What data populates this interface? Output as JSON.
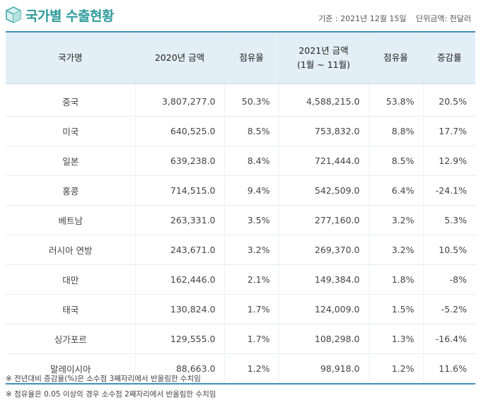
{
  "header": {
    "title": "국가별 수출현황",
    "date": "기준 : 2021년 12월 15일",
    "unit": "단위금액: 천달러"
  },
  "table": {
    "headers": [
      "국가명",
      "2020년 금액",
      "점유율",
      "2021년 금액\n(1월 ~ 11월)",
      "점유율",
      "증감률"
    ],
    "rows": [
      [
        "중국",
        "3,807,277.0",
        "50.3%",
        "4,588,215.0",
        "53.8%",
        "20.5%"
      ],
      [
        "미국",
        "640,525.0",
        "8.5%",
        "753,832.0",
        "8.8%",
        "17.7%"
      ],
      [
        "일본",
        "639,238.0",
        "8.4%",
        "721,444.0",
        "8.5%",
        "12.9%"
      ],
      [
        "홍콩",
        "714,515.0",
        "9.4%",
        "542,509.0",
        "6.4%",
        "-24.1%"
      ],
      [
        "베트남",
        "263,331.0",
        "3.5%",
        "277,160.0",
        "3.2%",
        "5.3%"
      ],
      [
        "러시아 연방",
        "243,671.0",
        "3.2%",
        "269,370.0",
        "3.2%",
        "10.5%"
      ],
      [
        "대만",
        "162,446.0",
        "2.1%",
        "149,384.0",
        "1.8%",
        "-8%"
      ],
      [
        "태국",
        "130,824.0",
        "1.7%",
        "124,009.0",
        "1.5%",
        "-5.2%"
      ],
      [
        "싱가포르",
        "129,555.0",
        "1.7%",
        "108,298.0",
        "1.3%",
        "-16.4%"
      ],
      [
        "말레이시아",
        "88,663.0",
        "1.2%",
        "98,918.0",
        "1.2%",
        "11.6%"
      ]
    ]
  },
  "notes": [
    "※ 전년대비 증감율(%)은 소수점 3째자리에서 반올림한 수치임",
    "※ 점유율은 0.05 이상의 경우 소수점 2째자리에서 반올림한 수치임"
  ],
  "colors": {
    "accent": "#2f9a9b",
    "table_border": "#3f8fbf",
    "header_bg": "#e3eff7"
  },
  "icons": {
    "title_icon": "cube-icon"
  }
}
